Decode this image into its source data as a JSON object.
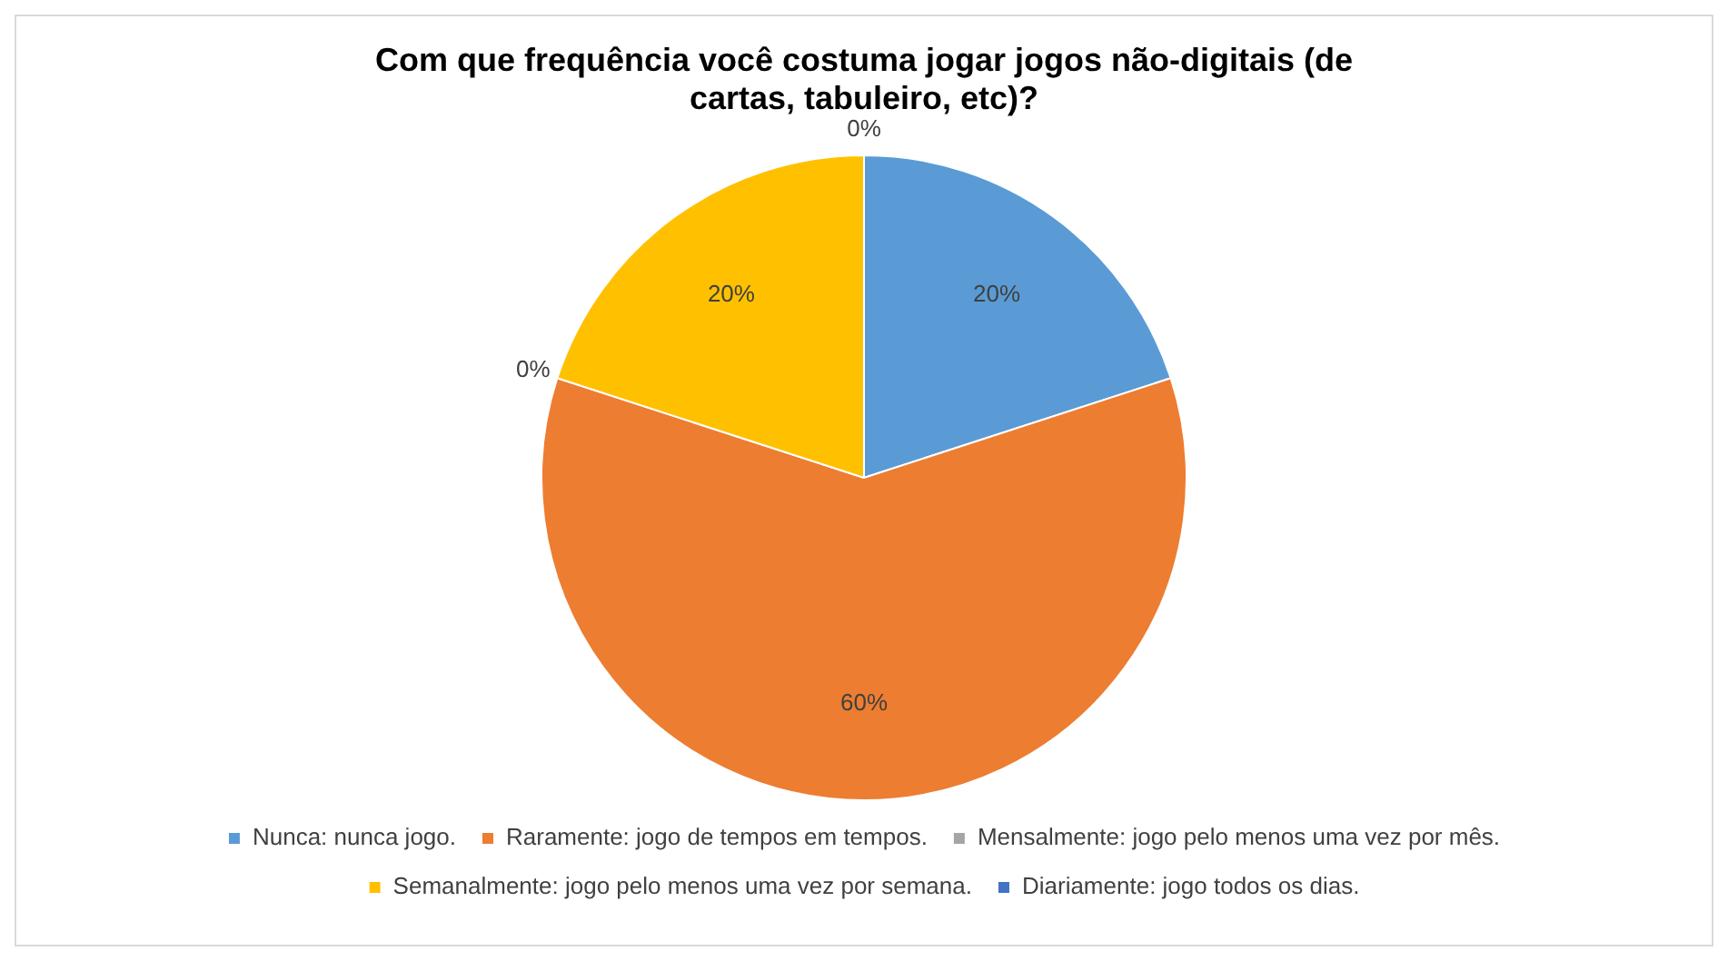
{
  "chart_data": {
    "type": "pie",
    "title": "Com que frequência você costuma jogar jogos não-digitais (de cartas, tabuleiro, etc)?",
    "categories": [
      "Nunca: nunca jogo.",
      "Raramente: jogo de tempos em tempos.",
      "Mensalmente: jogo pelo menos uma vez por mês.",
      "Semanalmente: jogo pelo menos uma vez por semana.",
      "Diariamente: jogo todos os dias."
    ],
    "values": [
      20,
      60,
      0,
      20,
      0
    ],
    "value_labels": [
      "20%",
      "60%",
      "0%",
      "20%",
      "0%"
    ],
    "colors": [
      "#5b9bd5",
      "#ed7d31",
      "#a5a5a5",
      "#ffc000",
      "#4472c4"
    ],
    "legend": "bottom"
  }
}
